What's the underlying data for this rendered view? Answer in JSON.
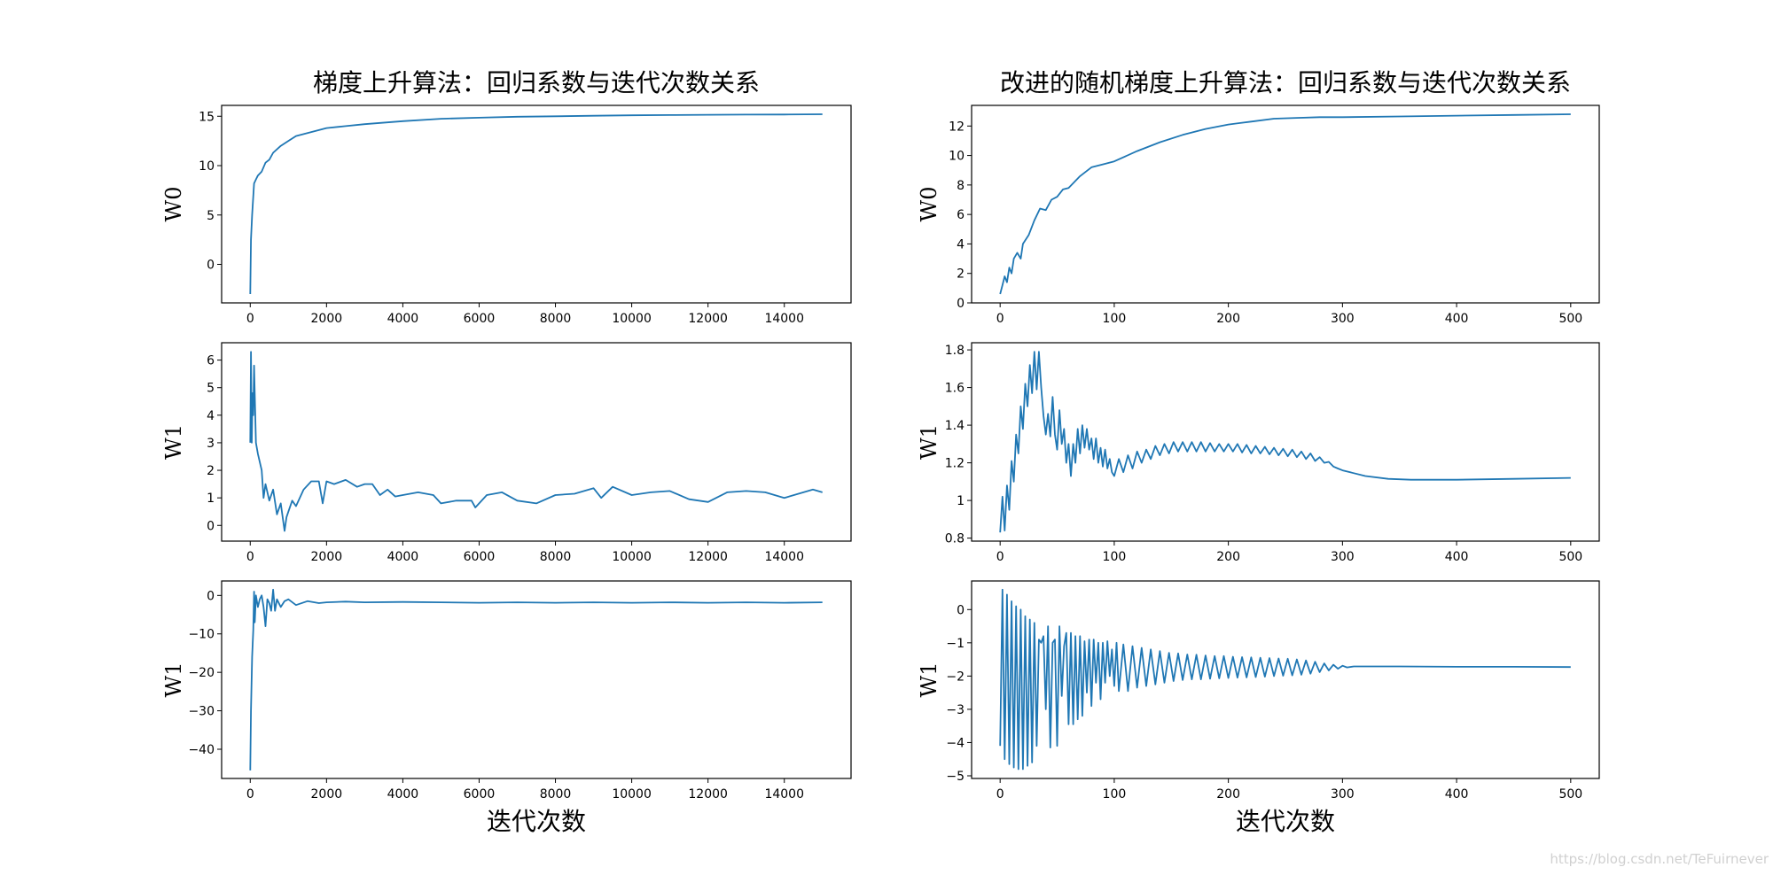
{
  "watermark": "https://blog.csdn.net/TeFuirnever",
  "line_color": "#1f77b4",
  "chart_data": [
    {
      "type": "line",
      "title": "梯度上升算法：回归系数与迭代次数关系",
      "ylabel": "W0",
      "xlabel": "",
      "xlim": [
        -750,
        15749
      ],
      "ylim": [
        -3.9,
        16.1
      ],
      "xticks": [
        0,
        2000,
        4000,
        6000,
        8000,
        10000,
        12000,
        14000
      ],
      "yticks": [
        0,
        5,
        10,
        15
      ],
      "grid": false,
      "x": [
        0,
        20,
        50,
        100,
        150,
        200,
        300,
        400,
        500,
        600,
        800,
        1000,
        1200,
        1500,
        2000,
        2500,
        3000,
        4000,
        5000,
        6000,
        7000,
        8000,
        9000,
        10000,
        11000,
        12000,
        13000,
        14000,
        14999
      ],
      "y": [
        -3.0,
        2.5,
        5.0,
        8.2,
        8.6,
        9.0,
        9.4,
        10.3,
        10.6,
        11.3,
        12.0,
        12.5,
        13.0,
        13.3,
        13.8,
        14.0,
        14.2,
        14.5,
        14.75,
        14.85,
        14.95,
        15.0,
        15.05,
        15.1,
        15.12,
        15.15,
        15.17,
        15.18,
        15.2
      ]
    },
    {
      "type": "line",
      "title": "改进的随机梯度上升算法：回归系数与迭代次数关系",
      "ylabel": "W0",
      "xlabel": "",
      "xlim": [
        -25,
        525
      ],
      "ylim": [
        0,
        13.4
      ],
      "xticks": [
        0,
        100,
        200,
        300,
        400,
        500
      ],
      "yticks": [
        0,
        2,
        4,
        6,
        8,
        10,
        12
      ],
      "grid": false,
      "x": [
        0,
        2,
        4,
        6,
        8,
        10,
        12,
        15,
        18,
        20,
        25,
        30,
        35,
        40,
        45,
        50,
        55,
        60,
        70,
        80,
        90,
        100,
        120,
        140,
        160,
        180,
        200,
        220,
        240,
        260,
        280,
        300,
        350,
        400,
        450,
        500
      ],
      "y": [
        0.6,
        1.2,
        1.8,
        1.4,
        2.4,
        2.0,
        3.0,
        3.4,
        3.0,
        4.0,
        4.6,
        5.6,
        6.4,
        6.3,
        7.0,
        7.2,
        7.7,
        7.8,
        8.6,
        9.2,
        9.4,
        9.6,
        10.3,
        10.9,
        11.4,
        11.8,
        12.1,
        12.3,
        12.5,
        12.55,
        12.6,
        12.6,
        12.65,
        12.7,
        12.75,
        12.8
      ]
    },
    {
      "type": "line",
      "title": "",
      "ylabel": "W1",
      "xlabel": "",
      "xlim": [
        -750,
        15749
      ],
      "ylim": [
        -0.57,
        6.63
      ],
      "xticks": [
        0,
        2000,
        4000,
        6000,
        8000,
        10000,
        12000,
        14000
      ],
      "yticks": [
        0,
        1,
        2,
        3,
        4,
        5,
        6
      ],
      "grid": false,
      "x": [
        0,
        20,
        40,
        60,
        80,
        100,
        150,
        200,
        300,
        350,
        400,
        500,
        600,
        700,
        800,
        900,
        950,
        1000,
        1100,
        1200,
        1400,
        1600,
        1800,
        1900,
        2000,
        2200,
        2500,
        2800,
        3000,
        3200,
        3400,
        3600,
        3800,
        4000,
        4400,
        4800,
        5000,
        5400,
        5800,
        5900,
        6200,
        6600,
        7000,
        7500,
        8000,
        8500,
        9000,
        9200,
        9500,
        10000,
        10500,
        11000,
        11500,
        12000,
        12500,
        13000,
        13500,
        14000,
        14500,
        14750,
        14999
      ],
      "y": [
        3.0,
        6.3,
        3.0,
        4.8,
        4.0,
        5.8,
        3.0,
        2.6,
        2.0,
        1.0,
        1.5,
        0.9,
        1.3,
        0.4,
        0.8,
        -0.2,
        0.3,
        0.5,
        0.9,
        0.7,
        1.3,
        1.6,
        1.6,
        0.8,
        1.6,
        1.5,
        1.65,
        1.4,
        1.5,
        1.5,
        1.1,
        1.3,
        1.05,
        1.1,
        1.2,
        1.1,
        0.8,
        0.9,
        0.9,
        0.65,
        1.1,
        1.2,
        0.9,
        0.8,
        1.1,
        1.15,
        1.35,
        1.0,
        1.4,
        1.1,
        1.2,
        1.25,
        0.95,
        0.85,
        1.2,
        1.25,
        1.2,
        1.0,
        1.2,
        1.3,
        1.2
      ]
    },
    {
      "type": "line",
      "title": "",
      "ylabel": "W1",
      "xlabel": "",
      "xlim": [
        -25,
        525
      ],
      "ylim": [
        0.784,
        1.838
      ],
      "xticks": [
        0,
        100,
        200,
        300,
        400,
        500
      ],
      "yticks": [
        0.8,
        1.0,
        1.2,
        1.4,
        1.6,
        1.8
      ],
      "grid": false,
      "x": [
        0,
        2,
        4,
        6,
        8,
        10,
        12,
        14,
        16,
        18,
        20,
        22,
        24,
        26,
        28,
        30,
        32,
        34,
        36,
        38,
        40,
        42,
        44,
        46,
        48,
        50,
        52,
        54,
        56,
        58,
        60,
        62,
        64,
        66,
        68,
        70,
        72,
        74,
        76,
        78,
        80,
        82,
        84,
        86,
        88,
        90,
        92,
        94,
        96,
        98,
        100,
        104,
        108,
        112,
        116,
        120,
        124,
        128,
        132,
        136,
        140,
        144,
        148,
        152,
        156,
        160,
        164,
        168,
        172,
        176,
        180,
        184,
        188,
        192,
        196,
        200,
        204,
        208,
        212,
        216,
        220,
        224,
        228,
        232,
        236,
        240,
        244,
        248,
        252,
        256,
        260,
        264,
        268,
        272,
        276,
        280,
        284,
        288,
        292,
        296,
        300,
        320,
        340,
        360,
        400,
        450,
        500
      ],
      "y": [
        0.83,
        1.02,
        0.84,
        1.08,
        0.95,
        1.21,
        1.1,
        1.35,
        1.25,
        1.5,
        1.38,
        1.62,
        1.5,
        1.72,
        1.57,
        1.79,
        1.59,
        1.79,
        1.6,
        1.45,
        1.35,
        1.46,
        1.34,
        1.55,
        1.35,
        1.27,
        1.48,
        1.3,
        1.38,
        1.2,
        1.3,
        1.13,
        1.3,
        1.2,
        1.38,
        1.25,
        1.4,
        1.28,
        1.38,
        1.27,
        1.33,
        1.22,
        1.33,
        1.2,
        1.28,
        1.18,
        1.27,
        1.17,
        1.22,
        1.15,
        1.13,
        1.22,
        1.15,
        1.24,
        1.17,
        1.26,
        1.2,
        1.27,
        1.22,
        1.29,
        1.24,
        1.3,
        1.25,
        1.31,
        1.26,
        1.31,
        1.26,
        1.31,
        1.26,
        1.31,
        1.26,
        1.305,
        1.26,
        1.3,
        1.26,
        1.3,
        1.26,
        1.3,
        1.255,
        1.295,
        1.25,
        1.29,
        1.25,
        1.285,
        1.245,
        1.28,
        1.24,
        1.275,
        1.235,
        1.27,
        1.23,
        1.26,
        1.22,
        1.25,
        1.21,
        1.23,
        1.2,
        1.205,
        1.18,
        1.17,
        1.16,
        1.13,
        1.115,
        1.11,
        1.11,
        1.115,
        1.12
      ]
    },
    {
      "type": "line",
      "title": "",
      "ylabel": "W1",
      "xlabel": "迭代次数",
      "xlim": [
        -750,
        15749
      ],
      "ylim": [
        -47.6,
        3.76
      ],
      "xticks": [
        0,
        2000,
        4000,
        6000,
        8000,
        10000,
        12000,
        14000
      ],
      "yticks": [
        -40,
        -30,
        -20,
        -10,
        0
      ],
      "grid": false,
      "x": [
        0,
        20,
        50,
        80,
        100,
        120,
        150,
        200,
        250,
        300,
        350,
        400,
        450,
        500,
        550,
        600,
        650,
        700,
        800,
        900,
        1000,
        1200,
        1500,
        1800,
        2000,
        2500,
        3000,
        4000,
        5000,
        6000,
        7000,
        8000,
        9000,
        10000,
        11000,
        12000,
        13000,
        14000,
        14999
      ],
      "y": [
        -45.5,
        -30,
        -16,
        -9,
        1,
        -7,
        0,
        -3,
        -1,
        0,
        -3,
        -8,
        -1,
        -2,
        -4,
        1.5,
        -4,
        -1,
        -3,
        -1.5,
        -1,
        -2.5,
        -1.5,
        -2,
        -1.8,
        -1.6,
        -1.8,
        -1.7,
        -1.8,
        -1.9,
        -1.8,
        -1.9,
        -1.8,
        -1.9,
        -1.8,
        -1.9,
        -1.8,
        -1.9,
        -1.8
      ]
    },
    {
      "type": "line",
      "title": "",
      "ylabel": "W1",
      "xlabel": "迭代次数",
      "xlim": [
        -25,
        525
      ],
      "ylim": [
        -5.08,
        0.86
      ],
      "xticks": [
        0,
        100,
        200,
        300,
        400,
        500
      ],
      "yticks": [
        -5,
        -4,
        -3,
        -2,
        -1,
        0
      ],
      "grid": false,
      "x": [
        0,
        2,
        4,
        6,
        8,
        10,
        12,
        14,
        16,
        18,
        20,
        22,
        24,
        26,
        28,
        30,
        32,
        34,
        36,
        38,
        40,
        42,
        44,
        46,
        48,
        50,
        52,
        54,
        56,
        58,
        60,
        62,
        64,
        66,
        68,
        70,
        72,
        74,
        76,
        78,
        80,
        82,
        84,
        86,
        88,
        90,
        92,
        94,
        96,
        98,
        100,
        102,
        104,
        108,
        112,
        116,
        120,
        124,
        128,
        132,
        136,
        140,
        144,
        148,
        152,
        156,
        160,
        164,
        168,
        172,
        176,
        180,
        184,
        188,
        192,
        196,
        200,
        204,
        208,
        212,
        216,
        220,
        224,
        228,
        232,
        236,
        240,
        244,
        248,
        252,
        256,
        260,
        264,
        268,
        272,
        276,
        280,
        284,
        288,
        292,
        296,
        300,
        304,
        310,
        320,
        350,
        400,
        450,
        500
      ],
      "y": [
        -4.1,
        0.6,
        -4.5,
        0.45,
        -4.65,
        0.25,
        -4.75,
        0.1,
        -4.8,
        0,
        -4.8,
        -0.2,
        -4.7,
        -0.3,
        -4.6,
        -0.4,
        -4.1,
        -0.9,
        -1.0,
        -0.8,
        -3.0,
        -0.5,
        -4.15,
        -1.0,
        -0.9,
        -4.1,
        -0.5,
        -2.6,
        -1.1,
        -0.7,
        -3.45,
        -0.7,
        -3.45,
        -0.8,
        -3.3,
        -0.8,
        -3.2,
        -0.95,
        -2.5,
        -0.9,
        -2.9,
        -0.9,
        -2.2,
        -1.0,
        -2.7,
        -1.0,
        -2.2,
        -0.95,
        -2.0,
        -1.2,
        -2.3,
        -1.0,
        -2.45,
        -1.05,
        -2.45,
        -1.1,
        -2.35,
        -1.15,
        -2.3,
        -1.2,
        -2.25,
        -1.25,
        -2.2,
        -1.3,
        -2.15,
        -1.32,
        -2.12,
        -1.35,
        -2.1,
        -1.36,
        -2.1,
        -1.38,
        -2.08,
        -1.4,
        -2.07,
        -1.4,
        -2.06,
        -1.42,
        -2.05,
        -1.43,
        -2.04,
        -1.44,
        -2.03,
        -1.45,
        -2.02,
        -1.46,
        -2.0,
        -1.47,
        -1.99,
        -1.48,
        -1.98,
        -1.5,
        -1.96,
        -1.53,
        -1.93,
        -1.57,
        -1.88,
        -1.62,
        -1.83,
        -1.66,
        -1.78,
        -1.69,
        -1.74,
        -1.71,
        -1.71,
        -1.71,
        -1.72,
        -1.72,
        -1.73
      ]
    }
  ]
}
